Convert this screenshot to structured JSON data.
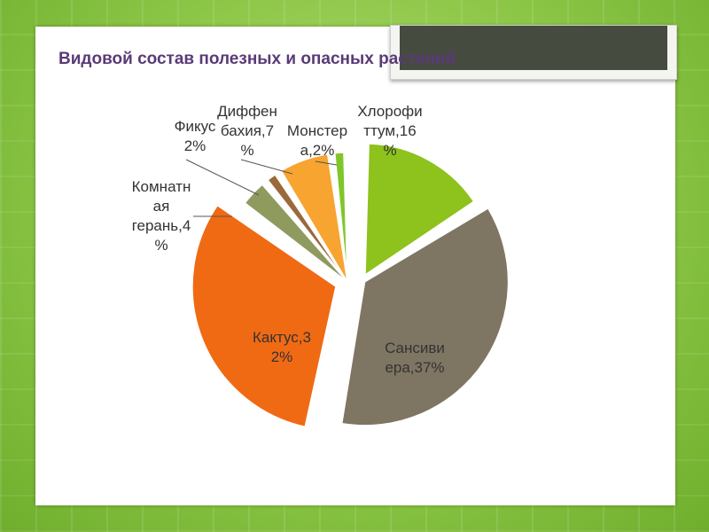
{
  "slide": {
    "title": "Видовой состав полезных и опасных растений"
  },
  "chart_data": {
    "type": "pie",
    "title": "Видовой состав полезных и опасных растений",
    "slices": [
      {
        "name": "Хлорофитум",
        "value": 16,
        "label_lines": [
          "Хлорофи",
          "ттум,16",
          "%"
        ],
        "color": "#8ec21d"
      },
      {
        "name": "Сансивиера",
        "value": 37,
        "label_lines": [
          "Сансиви",
          "ера,37%"
        ],
        "color": "#7f7563"
      },
      {
        "name": "Кактус",
        "value": 32,
        "label_lines": [
          "Кактус,3",
          "2%"
        ],
        "color": "#f06a14"
      },
      {
        "name": "Комнатная герань",
        "value": 4,
        "label_lines": [
          "Комнатн",
          "ая",
          "герань,4",
          "%"
        ],
        "color": "#8f9a5e"
      },
      {
        "name": "Фикус",
        "value": 2,
        "label_lines": [
          "Фикус",
          "2%"
        ],
        "color": "#9a6a3c"
      },
      {
        "name": "Диффенбахия",
        "value": 7,
        "label_lines": [
          "Диффен",
          "бахия,7",
          "%"
        ],
        "color": "#f7a431"
      },
      {
        "name": "Монстера",
        "value": 2,
        "label_lines": [
          "Монстер",
          "а,2%"
        ],
        "color": "#7fc629"
      }
    ]
  }
}
